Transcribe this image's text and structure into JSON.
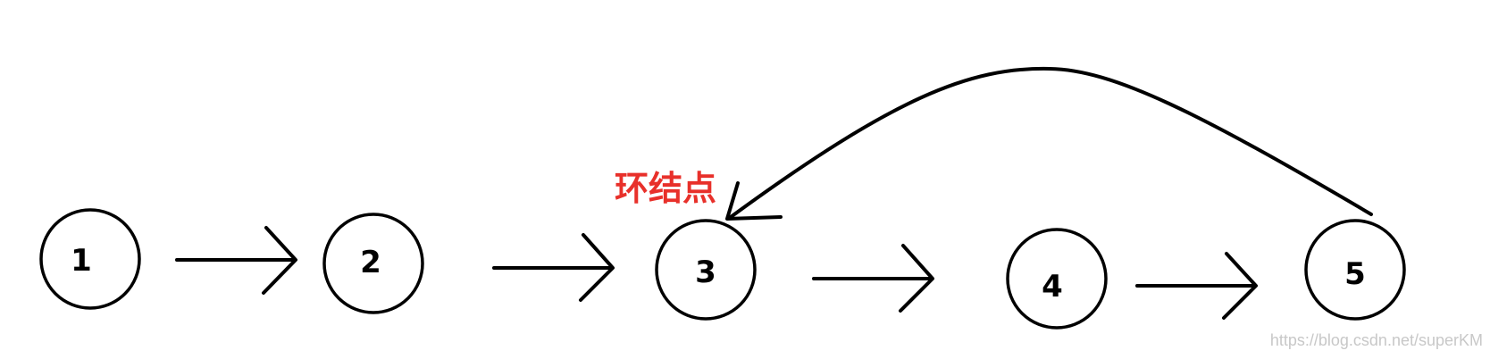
{
  "nodes": [
    {
      "id": "1",
      "label": "1"
    },
    {
      "id": "2",
      "label": "2"
    },
    {
      "id": "3",
      "label": "3"
    },
    {
      "id": "4",
      "label": "4"
    },
    {
      "id": "5",
      "label": "5"
    }
  ],
  "edges": [
    {
      "from": "1",
      "to": "2"
    },
    {
      "from": "2",
      "to": "3"
    },
    {
      "from": "3",
      "to": "4"
    },
    {
      "from": "4",
      "to": "5"
    },
    {
      "from": "5",
      "to": "3"
    }
  ],
  "annotation": {
    "ring_label": "环结点",
    "color": "#e8302a"
  },
  "watermark": {
    "text": "https://blog.csdn.net/superKM"
  }
}
